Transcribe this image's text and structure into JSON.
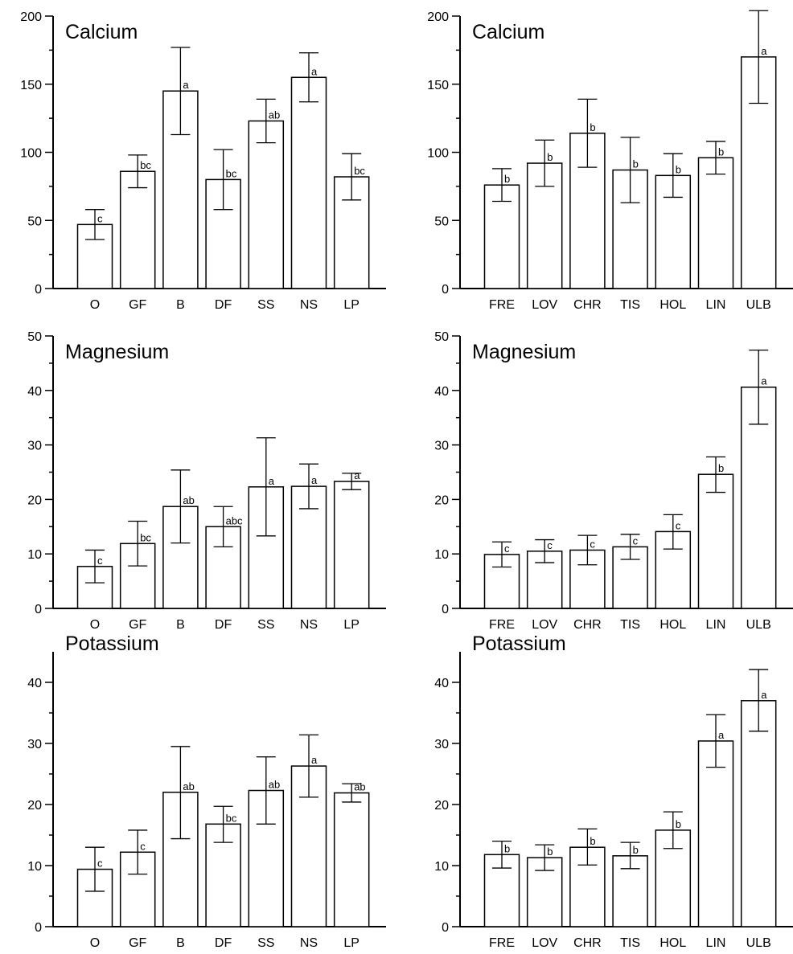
{
  "chart_data": [
    {
      "type": "bar",
      "title": "Calcium",
      "categories": [
        "O",
        "GF",
        "B",
        "DF",
        "SS",
        "NS",
        "LP"
      ],
      "values": [
        47,
        86,
        145,
        80,
        123,
        155,
        82
      ],
      "err_low": [
        36,
        74,
        113,
        58,
        107,
        137,
        65
      ],
      "err_high": [
        58,
        98,
        177,
        102,
        139,
        173,
        99
      ],
      "letters": [
        "c",
        "bc",
        "a",
        "bc",
        "ab",
        "a",
        "bc"
      ],
      "ylim": [
        0,
        200
      ],
      "yticks": [
        0,
        50,
        100,
        150,
        200
      ],
      "yticks_labels": [
        "0",
        "50",
        "100",
        "150",
        "200"
      ],
      "xlabel": "",
      "ylabel": "",
      "grid": false
    },
    {
      "type": "bar",
      "title": "Calcium",
      "categories": [
        "FRE",
        "LOV",
        "CHR",
        "TIS",
        "HOL",
        "LIN",
        "ULB"
      ],
      "values": [
        76,
        92,
        114,
        87,
        83,
        96,
        170
      ],
      "err_low": [
        64,
        75,
        89,
        63,
        67,
        84,
        136
      ],
      "err_high": [
        88,
        109,
        139,
        111,
        99,
        108,
        204
      ],
      "letters": [
        "b",
        "b",
        "b",
        "b",
        "b",
        "b",
        "a"
      ],
      "ylim": [
        0,
        200
      ],
      "yticks": [
        0,
        50,
        100,
        150,
        200
      ],
      "yticks_labels": [
        "0",
        "50",
        "100",
        "150",
        "200"
      ],
      "xlabel": "",
      "ylabel": "",
      "grid": false
    },
    {
      "type": "bar",
      "title": "Magnesium",
      "categories": [
        "O",
        "GF",
        "B",
        "DF",
        "SS",
        "NS",
        "LP"
      ],
      "values": [
        7.7,
        11.9,
        18.7,
        15.0,
        22.3,
        22.4,
        23.3
      ],
      "err_low": [
        4.7,
        7.8,
        12.0,
        11.3,
        13.3,
        18.3,
        21.8
      ],
      "err_high": [
        10.7,
        16.0,
        25.4,
        18.7,
        31.3,
        26.5,
        24.8
      ],
      "letters": [
        "c",
        "bc",
        "ab",
        "abc",
        "a",
        "a",
        "a"
      ],
      "ylim": [
        0,
        50
      ],
      "yticks": [
        0,
        10,
        20,
        30,
        40,
        50
      ],
      "yticks_labels": [
        "0",
        "10",
        "20",
        "30",
        "40",
        "50"
      ],
      "xlabel": "",
      "ylabel": "",
      "grid": false
    },
    {
      "type": "bar",
      "title": "Magnesium",
      "categories": [
        "FRE",
        "LOV",
        "CHR",
        "TIS",
        "HOL",
        "LIN",
        "ULB"
      ],
      "values": [
        9.9,
        10.5,
        10.7,
        11.3,
        14.1,
        24.6,
        40.6
      ],
      "err_low": [
        7.6,
        8.4,
        8.0,
        9.0,
        10.9,
        21.3,
        33.8
      ],
      "err_high": [
        12.2,
        12.6,
        13.4,
        13.6,
        17.2,
        27.8,
        47.4
      ],
      "letters": [
        "c",
        "c",
        "c",
        "c",
        "c",
        "b",
        "a"
      ],
      "ylim": [
        0,
        50
      ],
      "yticks": [
        0,
        10,
        20,
        30,
        40,
        50
      ],
      "yticks_labels": [
        "0",
        "10",
        "20",
        "30",
        "40",
        "50"
      ],
      "xlabel": "",
      "ylabel": "",
      "grid": false
    },
    {
      "type": "bar",
      "title": "Potassium",
      "categories": [
        "O",
        "GF",
        "B",
        "DF",
        "SS",
        "NS",
        "LP"
      ],
      "values": [
        9.4,
        12.2,
        22.0,
        16.8,
        22.3,
        26.3,
        21.9
      ],
      "err_low": [
        5.8,
        8.6,
        14.4,
        13.8,
        16.8,
        21.2,
        20.4
      ],
      "err_high": [
        13.0,
        15.8,
        29.5,
        19.7,
        27.8,
        31.4,
        23.4
      ],
      "letters": [
        "c",
        "c",
        "ab",
        "bc",
        "ab",
        "a",
        "ab"
      ],
      "ylim": [
        0,
        45
      ],
      "yticks": [
        0,
        10,
        20,
        30,
        40
      ],
      "yticks_labels": [
        "0",
        "10",
        "20",
        "30",
        "40"
      ],
      "xlabel": "",
      "ylabel": "",
      "grid": false
    },
    {
      "type": "bar",
      "title": "Potassium",
      "categories": [
        "FRE",
        "LOV",
        "CHR",
        "TIS",
        "HOL",
        "LIN",
        "ULB"
      ],
      "values": [
        11.8,
        11.3,
        13.0,
        11.6,
        15.8,
        30.4,
        37.0
      ],
      "err_low": [
        9.6,
        9.2,
        10.1,
        9.5,
        12.8,
        26.1,
        32.0
      ],
      "err_high": [
        14.0,
        13.4,
        16.0,
        13.8,
        18.8,
        34.7,
        42.1
      ],
      "letters": [
        "b",
        "b",
        "b",
        "b",
        "b",
        "a",
        "a"
      ],
      "ylim": [
        0,
        45
      ],
      "yticks": [
        0,
        10,
        20,
        30,
        40
      ],
      "yticks_labels": [
        "0",
        "10",
        "20",
        "30",
        "40"
      ],
      "xlabel": "",
      "ylabel": "",
      "grid": false
    }
  ]
}
